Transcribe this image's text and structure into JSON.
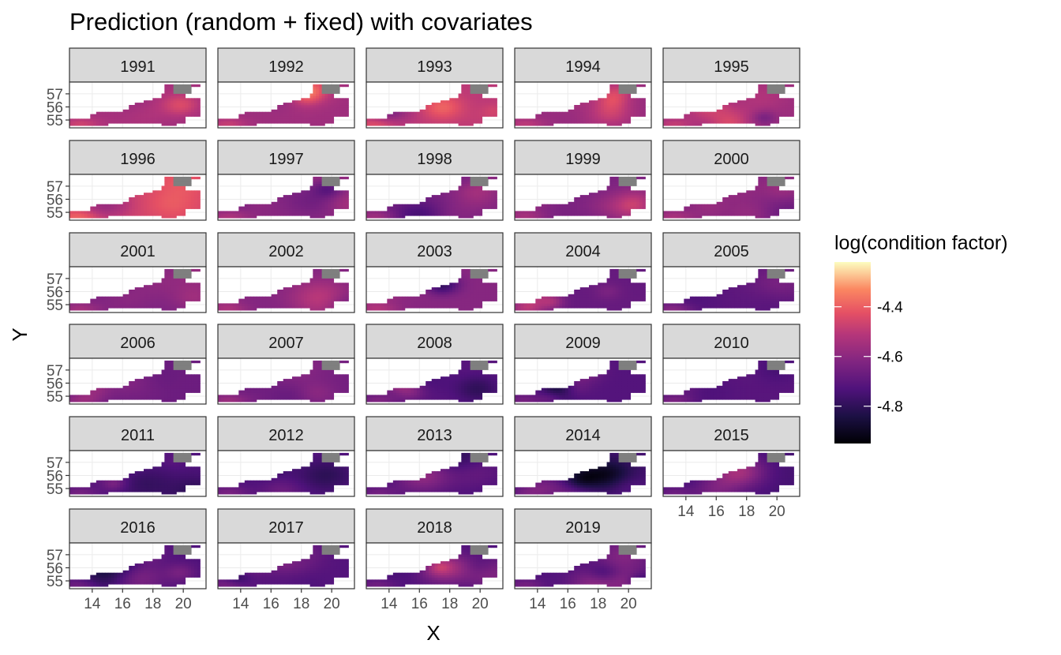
{
  "chart_data": {
    "type": "heatmap",
    "title": "Prediction (random + fixed) with covariates",
    "xlabel": "X",
    "ylabel": "Y",
    "facet_variable": "year",
    "panels": [
      "1991",
      "1992",
      "1993",
      "1994",
      "1995",
      "1996",
      "1997",
      "1998",
      "1999",
      "2000",
      "2001",
      "2002",
      "2003",
      "2004",
      "2005",
      "2006",
      "2007",
      "2008",
      "2009",
      "2010",
      "2011",
      "2012",
      "2013",
      "2014",
      "2015",
      "2016",
      "2017",
      "2018",
      "2019"
    ],
    "panel_columns": 5,
    "x_ticks": [
      14,
      16,
      18,
      20
    ],
    "x_tick_labels": [
      "14",
      "16",
      "18",
      "20"
    ],
    "y_ticks": [
      55,
      56,
      57
    ],
    "y_tick_labels": [
      "55",
      "56",
      "57"
    ],
    "xlim": [
      12.5,
      21.5
    ],
    "ylim": [
      54.4,
      57.9
    ],
    "legend": {
      "title": "log(condition factor)",
      "position": "right",
      "range": [
        -4.95,
        -4.22
      ],
      "ticks": [
        -4.4,
        -4.6,
        -4.8
      ],
      "tick_labels": [
        "-4.4",
        "-4.6",
        "-4.8"
      ],
      "palette": "magma"
    },
    "panel_mean_values": [
      -4.55,
      -4.56,
      -4.5,
      -4.58,
      -4.57,
      -4.46,
      -4.6,
      -4.63,
      -4.64,
      -4.62,
      -4.63,
      -4.62,
      -4.61,
      -4.68,
      -4.7,
      -4.67,
      -4.65,
      -4.71,
      -4.72,
      -4.71,
      -4.73,
      -4.72,
      -4.74,
      -4.75,
      -4.75,
      -4.73,
      -4.72,
      -4.74,
      -4.73
    ],
    "na_region_color": "#7f7f7f",
    "strip_color": "#d9d9d9",
    "grid": true
  }
}
